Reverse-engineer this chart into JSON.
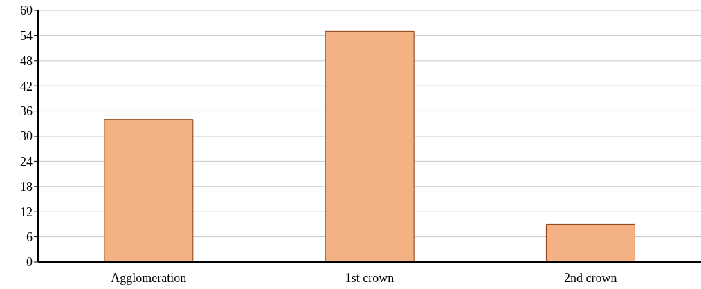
{
  "chart_data": {
    "type": "bar",
    "categories": [
      "Agglomeration",
      "1st crown",
      "2nd crown"
    ],
    "values": [
      34,
      55,
      9
    ],
    "color": "#f4b183",
    "ylim": [
      0,
      60
    ],
    "yticks": [
      0,
      6,
      12,
      18,
      24,
      30,
      36,
      42,
      48,
      54,
      60
    ],
    "grid": "y"
  }
}
